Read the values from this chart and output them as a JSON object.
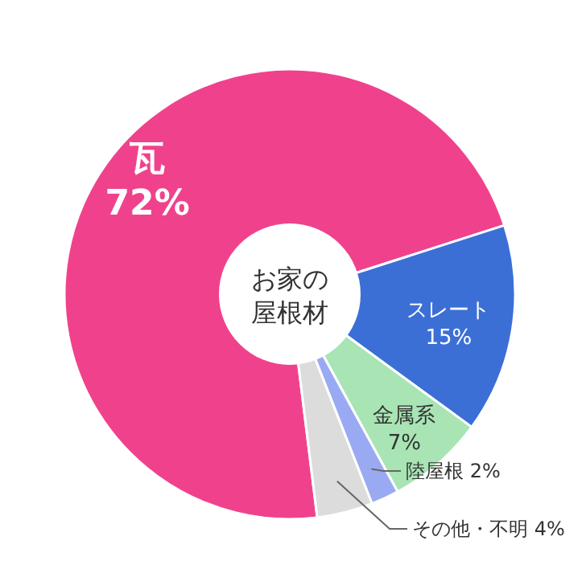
{
  "chart_data": {
    "type": "pie",
    "title": "お家の屋根材",
    "categories": [
      "瓦",
      "スレート",
      "金属系",
      "陸屋根",
      "その他・不明"
    ],
    "values": [
      72,
      15,
      7,
      2,
      4
    ],
    "value_labels": [
      "72%",
      "15%",
      "7%",
      "2%",
      "4%"
    ],
    "colors": [
      "#f0428c",
      "#3b6fd6",
      "#a8e4b4",
      "#9aaaf2",
      "#dcdcdc"
    ]
  }
}
